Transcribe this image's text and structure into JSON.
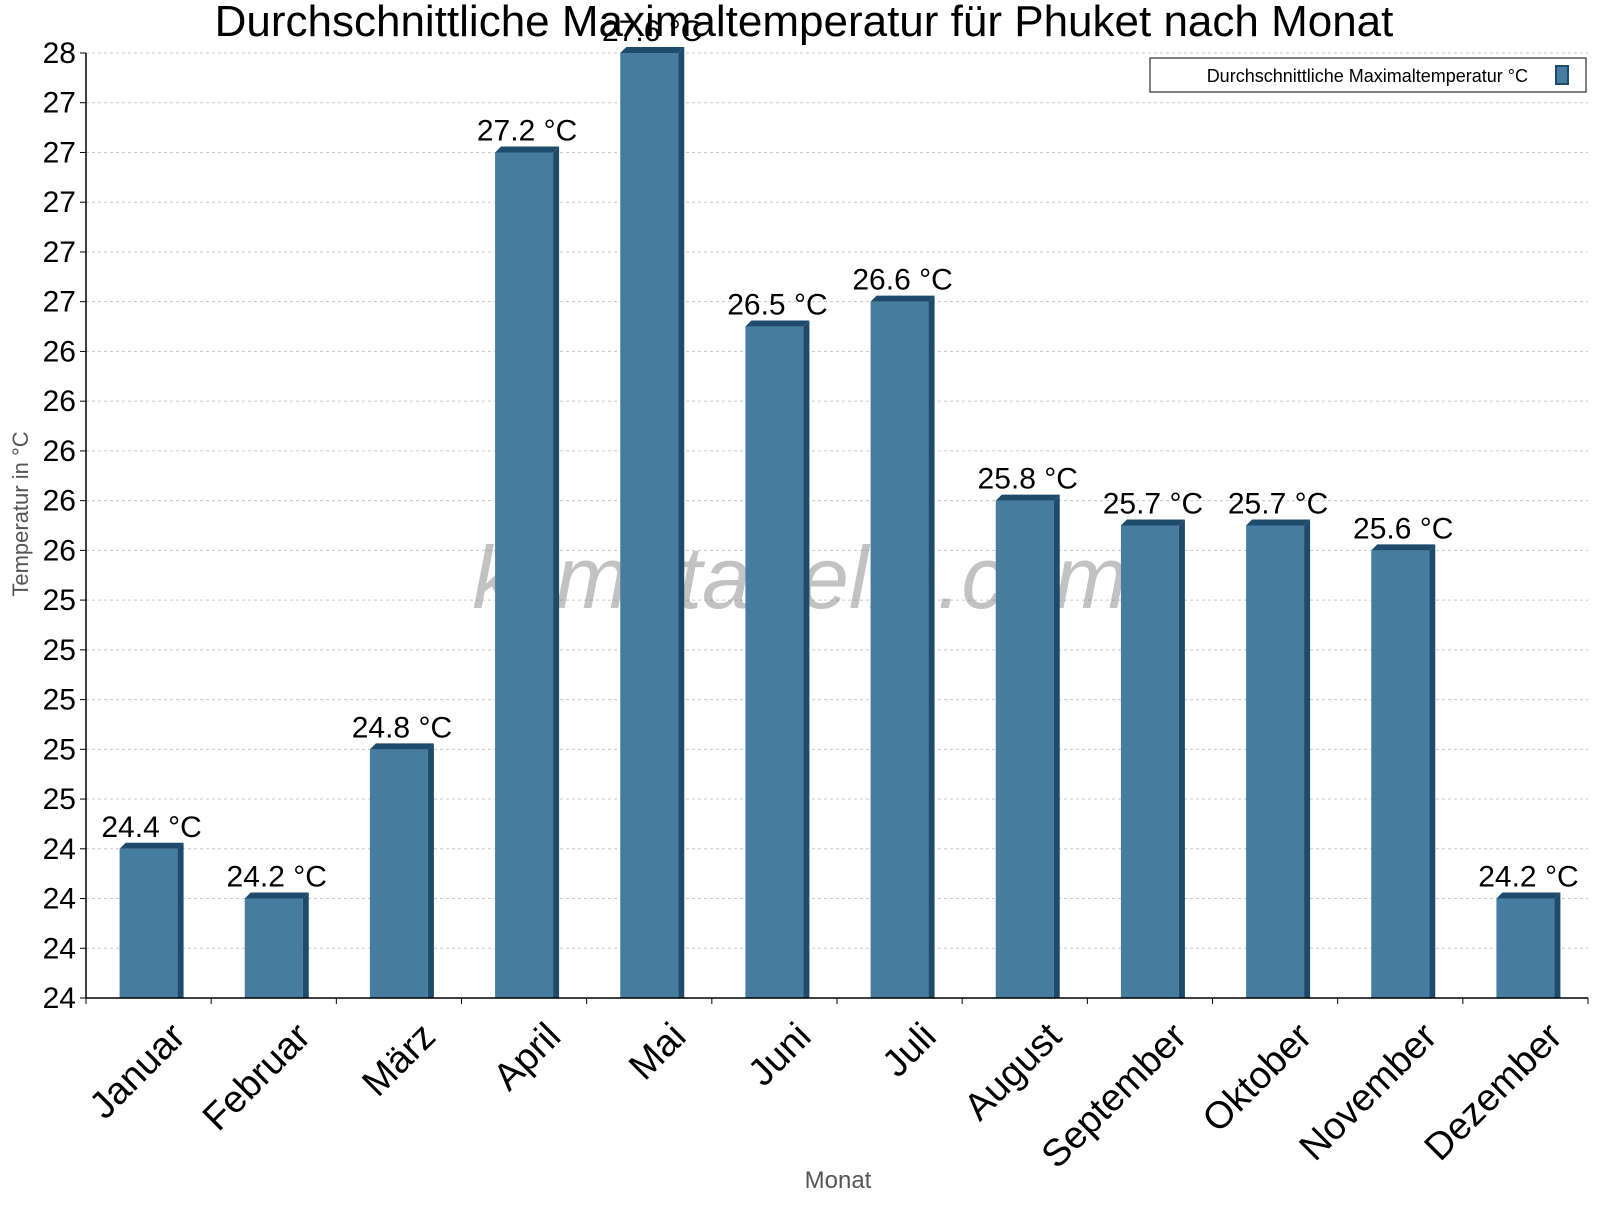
{
  "chart_data": {
    "type": "bar",
    "title": "Durchschnittliche Maximaltemperatur für Phuket nach Monat",
    "xlabel": "Monat",
    "ylabel": "Temperatur in °C",
    "categories": [
      "Januar",
      "Februar",
      "März",
      "April",
      "Mai",
      "Juni",
      "Juli",
      "August",
      "September",
      "Oktober",
      "November",
      "Dezember"
    ],
    "series": [
      {
        "name": "Durchschnittliche Maximaltemperatur °C",
        "values": [
          24.4,
          24.2,
          24.8,
          27.2,
          27.6,
          26.5,
          26.6,
          25.8,
          25.7,
          25.7,
          25.6,
          24.2
        ],
        "labels": [
          "24.4 °C",
          "24.2 °C",
          "24.8 °C",
          "27.2 °C",
          "27.6 °C",
          "26.5 °C",
          "26.6 °C",
          "25.8 °C",
          "25.7 °C",
          "25.7 °C",
          "25.6 °C",
          "24.2 °C"
        ]
      }
    ],
    "ylim": [
      23.8,
      27.6
    ],
    "yticks": [
      23.8,
      24.0,
      24.2,
      24.4,
      24.6,
      24.8,
      25.0,
      25.2,
      25.4,
      25.6,
      25.8,
      26.0,
      26.2,
      26.4,
      26.6,
      26.8,
      27.0,
      27.2,
      27.4,
      27.6
    ],
    "ytick_labels": [
      "24",
      "24",
      "24",
      "24",
      "25",
      "25",
      "25",
      "25",
      "25",
      "26",
      "26",
      "26",
      "26",
      "26",
      "27",
      "27",
      "27",
      "27",
      "27",
      "28"
    ],
    "grid": true,
    "legend_position": "top-right",
    "watermark": "klimatabelle.com",
    "colors": {
      "bar": "#467c9f",
      "bar_side": "#1e4b6c",
      "grid": "#c8c8c8",
      "axis_label": "#555555",
      "watermark": "rgba(120,120,120,0.45)"
    }
  }
}
